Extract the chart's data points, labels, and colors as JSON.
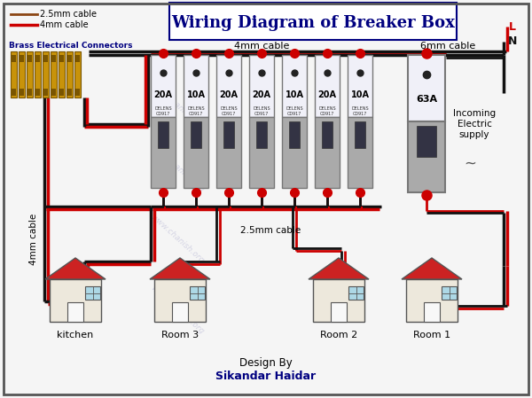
{
  "title": "Wiring Diagram of Breaker Box",
  "bg_color": "#f5f5f5",
  "title_fontsize": 13,
  "black_wire": "#111111",
  "red_wire": "#cc0000",
  "brown_wire": "#8B4513",
  "breaker_labels": [
    "20A",
    "10A",
    "20A",
    "20A",
    "10A",
    "20A",
    "10A"
  ],
  "main_breaker_label": "63A",
  "watermark_text": "www.chanish.org",
  "credit_text1": "Design By",
  "credit_text2": "Sikandar Haidar",
  "room_labels": [
    "kitchen",
    "Room 3",
    "Room 2",
    "Room 1"
  ],
  "connector_label": "Brass Electrical Connectors",
  "cable_4mm_label": "4mm cable",
  "cable_4mm_top_label": "4mm cable",
  "cable_6mm_label": "6mm cable",
  "cable_2p5mm_label": "2.5mm cable",
  "incoming_label": "Incoming\nElectric\nsupply",
  "L_label": "L",
  "N_label": "N",
  "legend_2p5mm": "2.5mm cable",
  "legend_4mm": "4mm cable"
}
